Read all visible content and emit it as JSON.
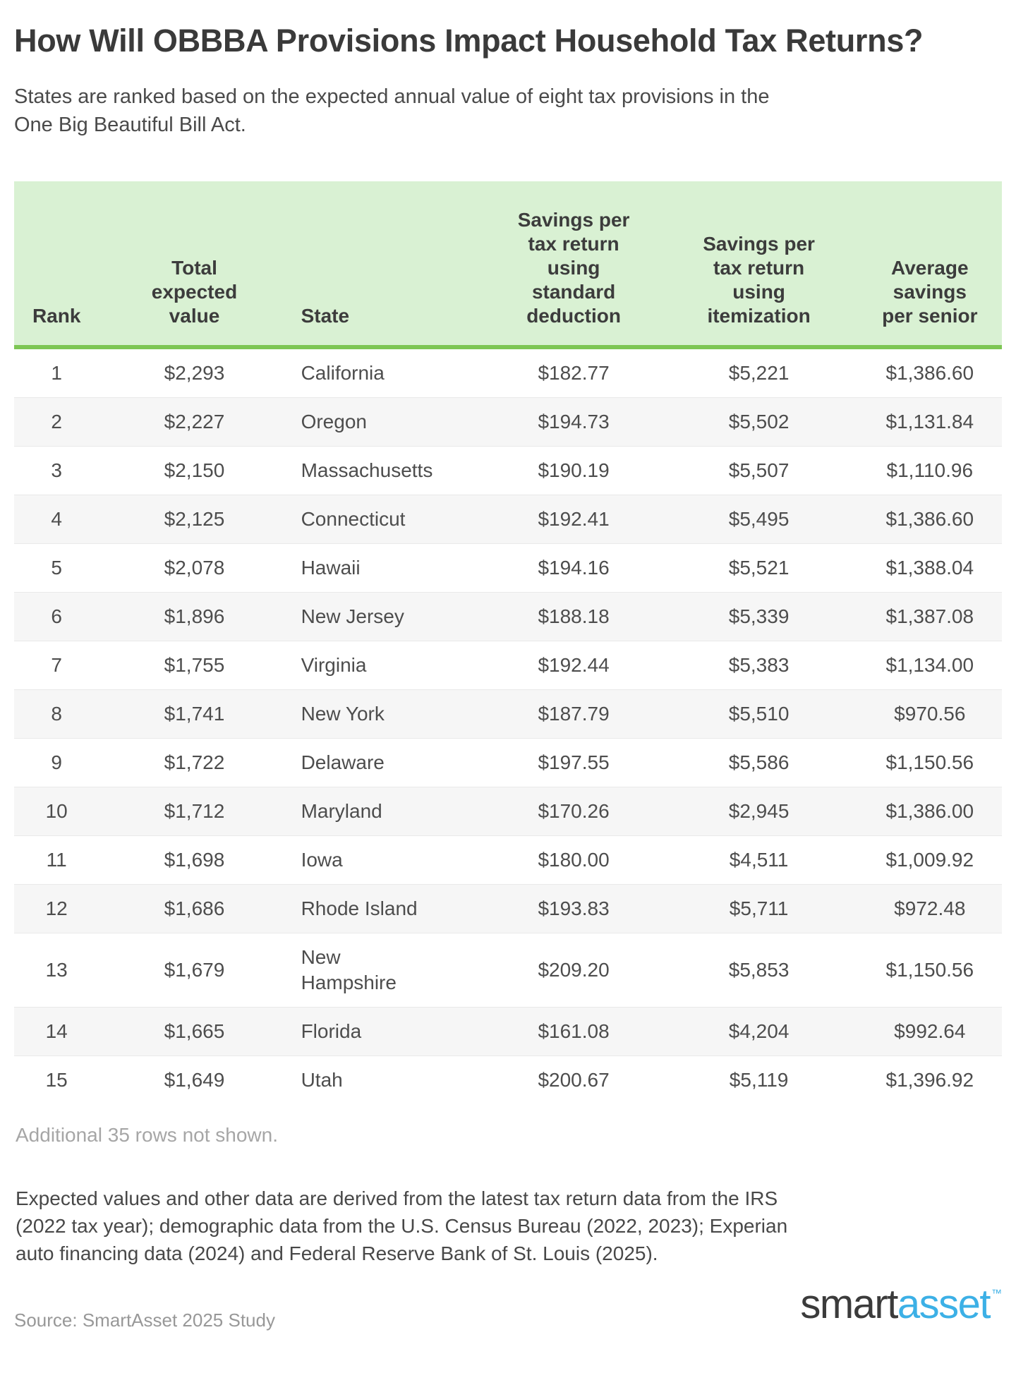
{
  "header": {
    "title": "How Will OBBBA Provisions Impact Household Tax Returns?",
    "subtitle": "States are ranked based on the expected annual value of eight tax provisions in the\nOne Big Beautiful Bill Act."
  },
  "chart_data": {
    "type": "table",
    "title": "How Will OBBBA Provisions Impact Household Tax Returns?",
    "subtitle": "States are ranked based on the expected annual value of eight tax provisions in the One Big Beautiful Bill Act.",
    "columns": [
      {
        "key": "rank",
        "label": "Rank"
      },
      {
        "key": "total-expected-value",
        "label": "Total\nexpected\nvalue"
      },
      {
        "key": "state",
        "label": "State"
      },
      {
        "key": "savings-standard-deduction",
        "label": "Savings per\ntax return\nusing\nstandard\ndeduction"
      },
      {
        "key": "savings-itemization",
        "label": "Savings per\ntax return\nusing\nitemization"
      },
      {
        "key": "avg-savings-per-senior",
        "label": "Average\nsavings\nper senior"
      }
    ],
    "rows": [
      [
        "1",
        "$2,293",
        "California",
        "$182.77",
        "$5,221",
        "$1,386.60"
      ],
      [
        "2",
        "$2,227",
        "Oregon",
        "$194.73",
        "$5,502",
        "$1,131.84"
      ],
      [
        "3",
        "$2,150",
        "Massachusetts",
        "$190.19",
        "$5,507",
        "$1,110.96"
      ],
      [
        "4",
        "$2,125",
        "Connecticut",
        "$192.41",
        "$5,495",
        "$1,386.60"
      ],
      [
        "5",
        "$2,078",
        "Hawaii",
        "$194.16",
        "$5,521",
        "$1,388.04"
      ],
      [
        "6",
        "$1,896",
        "New Jersey",
        "$188.18",
        "$5,339",
        "$1,387.08"
      ],
      [
        "7",
        "$1,755",
        "Virginia",
        "$192.44",
        "$5,383",
        "$1,134.00"
      ],
      [
        "8",
        "$1,741",
        "New York",
        "$187.79",
        "$5,510",
        "$970.56"
      ],
      [
        "9",
        "$1,722",
        "Delaware",
        "$197.55",
        "$5,586",
        "$1,150.56"
      ],
      [
        "10",
        "$1,712",
        "Maryland",
        "$170.26",
        "$2,945",
        "$1,386.00"
      ],
      [
        "11",
        "$1,698",
        "Iowa",
        "$180.00",
        "$4,511",
        "$1,009.92"
      ],
      [
        "12",
        "$1,686",
        "Rhode Island",
        "$193.83",
        "$5,711",
        "$972.48"
      ],
      [
        "13",
        "$1,679",
        "New\nHampshire",
        "$209.20",
        "$5,853",
        "$1,150.56"
      ],
      [
        "14",
        "$1,665",
        "Florida",
        "$161.08",
        "$4,204",
        "$992.64"
      ],
      [
        "15",
        "$1,649",
        "Utah",
        "$200.67",
        "$5,119",
        "$1,396.92"
      ]
    ],
    "note": "Additional 35 rows not shown.",
    "footnote": "Expected values and other data are derived from the latest tax return data from the IRS\n(2022 tax year); demographic data from the U.S. Census Bureau (2022, 2023); Experian\nauto financing data (2024) and Federal Reserve Bank of St. Louis (2025).",
    "source": "Source: SmartAsset 2025 Study"
  },
  "branding": {
    "logo_part1": "smart",
    "logo_part2": "asset",
    "logo_tm": "™"
  },
  "colors": {
    "header_green_bg": "#d9f1d3",
    "header_green_border": "#7dc654",
    "row_stripe": "#f6f6f6",
    "logo_blue": "#3cb0e6",
    "text_dark": "#3a3a3a",
    "note_gray": "#a6a6a6"
  }
}
